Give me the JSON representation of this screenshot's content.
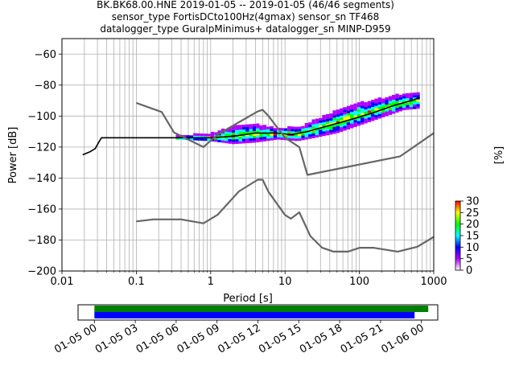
{
  "title": {
    "line1": "BK.BK68.00.HNE   2019-01-05 -- 2019-01-05  (46/46 segments)",
    "line2": "sensor_type FortisDCto100Hz(4gmax) sensor_sn TF468",
    "line3": "datalogger_type GuralpMinimus+ datalogger_sn MINP-D959"
  },
  "chart_data": [
    {
      "type": "heatmap",
      "title": "",
      "xlabel": "Period [s]",
      "ylabel": "Power [dB]",
      "x_scale": "log",
      "xlim": [
        0.01,
        1000
      ],
      "ylim": [
        -200,
        -50
      ],
      "x_ticks": [
        0.01,
        0.1,
        1,
        10,
        100,
        1000
      ],
      "x_tick_labels": [
        "0.01",
        "0.1",
        "1",
        "10",
        "100",
        "1000"
      ],
      "y_ticks": [
        -200,
        -180,
        -160,
        -140,
        -120,
        -100,
        -80,
        -60
      ],
      "y_tick_labels": [
        "−200",
        "−180",
        "−160",
        "−140",
        "−120",
        "−100",
        "−80",
        "−60"
      ],
      "grid": true,
      "colormap": [
        "#ffffff",
        "#b000ff",
        "#0000ff",
        "#00ffff",
        "#00ff00",
        "#ffff00",
        "#ff0000"
      ],
      "colorbar": {
        "label": "[%]",
        "ticks": [
          0,
          5,
          10,
          15,
          20,
          25,
          30
        ],
        "tick_labels": [
          "0",
          "5",
          "10",
          "15",
          "20",
          "25",
          "30"
        ]
      },
      "noise_model_color": "#666666",
      "series": [
        {
          "name": "",
          "color": "#000000",
          "x": [
            0.019,
            0.024,
            0.028,
            0.032,
            0.034,
            0.1,
            0.5,
            1.0,
            2.0,
            4.0,
            8.0,
            12.0,
            20.0,
            40.0,
            80.0,
            150.0,
            300.0,
            500.0,
            650.0
          ],
          "y": [
            -125,
            -123,
            -121,
            -116,
            -114,
            -114,
            -114,
            -114,
            -113,
            -111,
            -111,
            -112,
            -110,
            -106,
            -102,
            -98,
            -93,
            -90,
            -88
          ]
        },
        {
          "name": "",
          "color": "#666666",
          "x": [
            0.1,
            0.22,
            0.32,
            0.8,
            1.24,
            2.4,
            4.3,
            5.0,
            6.0,
            10.0,
            15.6,
            20.0,
            354.0,
            1000.0
          ],
          "y": [
            -91.5,
            -97.4,
            -110.5,
            -120.0,
            -112.0,
            -104.0,
            -97.0,
            -96.0,
            -100.0,
            -114.0,
            -120.0,
            -138.0,
            -126.0,
            -111.0
          ]
        },
        {
          "name": "",
          "color": "#666666",
          "x": [
            0.1,
            0.17,
            0.4,
            0.8,
            1.24,
            2.4,
            4.3,
            5.0,
            6.0,
            10.0,
            12.0,
            15.6,
            21.9,
            31.6,
            45.0,
            70.0,
            101.0,
            154.0,
            328.0,
            600.0,
            1000.0
          ],
          "y": [
            -168.0,
            -166.7,
            -166.7,
            -169.2,
            -163.7,
            -148.6,
            -141.1,
            -141.1,
            -149.0,
            -163.8,
            -166.2,
            -162.1,
            -177.5,
            -185.0,
            -187.5,
            -187.5,
            -185.0,
            -185.0,
            -187.5,
            -184.4,
            -178.0
          ]
        }
      ],
      "density_band": [
        {
          "x": 0.34,
          "ymin": -115,
          "ymax": -113
        },
        {
          "x": 1.0,
          "ymin": -116,
          "ymax": -112
        },
        {
          "x": 2.0,
          "ymin": -118,
          "ymax": -107
        },
        {
          "x": 4.0,
          "ymin": -117,
          "ymax": -106
        },
        {
          "x": 8.0,
          "ymin": -115,
          "ymax": -108
        },
        {
          "x": 15.0,
          "ymin": -116,
          "ymax": -108
        },
        {
          "x": 25.0,
          "ymin": -114,
          "ymax": -103
        },
        {
          "x": 50.0,
          "ymin": -111,
          "ymax": -97
        },
        {
          "x": 100.0,
          "ymin": -106,
          "ymax": -92
        },
        {
          "x": 200.0,
          "ymin": -101,
          "ymax": -89
        },
        {
          "x": 400.0,
          "ymin": -96,
          "ymax": -86
        },
        {
          "x": 650.0,
          "ymin": -95,
          "ymax": -85
        }
      ]
    },
    {
      "type": "timeline",
      "x_tick_labels": [
        "01-05 00",
        "01-05 03",
        "01-05 06",
        "01-05 09",
        "01-05 12",
        "01-05 15",
        "01-05 18",
        "01-05 21",
        "01-06 00"
      ],
      "x_tick_hours": [
        0,
        3,
        6,
        9,
        12,
        15,
        18,
        21,
        24
      ],
      "xlim_hours": [
        -1.2,
        25.2
      ],
      "bars": [
        {
          "name": "",
          "color": "#008000",
          "start_hour": 0,
          "end_hour": 24.5
        },
        {
          "name": "",
          "color": "#0000ff",
          "start_hour": 0,
          "end_hour": 23.5
        }
      ]
    }
  ]
}
